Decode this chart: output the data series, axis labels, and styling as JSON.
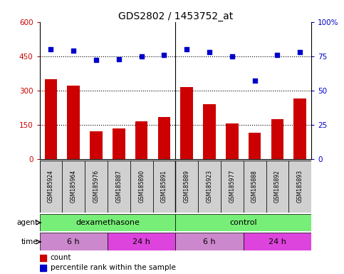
{
  "title": "GDS2802 / 1453752_at",
  "samples": [
    "GSM185924",
    "GSM185964",
    "GSM185976",
    "GSM185887",
    "GSM185890",
    "GSM185891",
    "GSM185889",
    "GSM185923",
    "GSM185977",
    "GSM185888",
    "GSM185892",
    "GSM185893"
  ],
  "counts": [
    350,
    320,
    120,
    135,
    165,
    185,
    315,
    240,
    155,
    115,
    175,
    265
  ],
  "percentiles": [
    80,
    79,
    72,
    73,
    75,
    76,
    80,
    78,
    75,
    57,
    76,
    78
  ],
  "bar_color": "#cc0000",
  "dot_color": "#0000cc",
  "ylim_left": [
    0,
    600
  ],
  "ylim_right": [
    0,
    100
  ],
  "yticks_left": [
    0,
    150,
    300,
    450,
    600
  ],
  "yticks_right": [
    0,
    25,
    50,
    75,
    100
  ],
  "ytick_labels_right": [
    "0",
    "25",
    "50",
    "75",
    "100%"
  ],
  "hlines": [
    150,
    300,
    450
  ],
  "agent_groups": [
    {
      "label": "dexamethasone",
      "start": 0,
      "end": 6,
      "color": "#77ee77"
    },
    {
      "label": "control",
      "start": 6,
      "end": 12,
      "color": "#77ee77"
    }
  ],
  "time_groups": [
    {
      "label": "6 h",
      "start": 0,
      "end": 3,
      "color": "#cc88cc"
    },
    {
      "label": "24 h",
      "start": 3,
      "end": 6,
      "color": "#dd44dd"
    },
    {
      "label": "6 h",
      "start": 6,
      "end": 9,
      "color": "#cc88cc"
    },
    {
      "label": "24 h",
      "start": 9,
      "end": 12,
      "color": "#dd44dd"
    }
  ],
  "legend_count_color": "#cc0000",
  "legend_pct_color": "#0000cc",
  "bg_color": "#ffffff",
  "sample_bg_color": "#cccccc",
  "agent_label": "agent",
  "time_label": "time"
}
